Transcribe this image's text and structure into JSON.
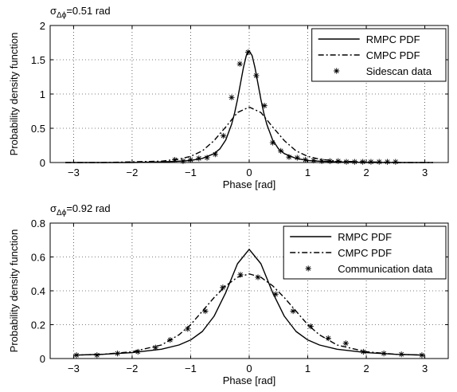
{
  "chart_data": [
    {
      "type": "line",
      "title_prefix": "σ",
      "title_subscript": "Δϕ",
      "title_suffix": "=0.51 rad",
      "xlabel": "Phase [rad]",
      "ylabel": "Probability density function",
      "xlim": [
        -3.4,
        3.4
      ],
      "ylim": [
        0,
        2
      ],
      "xticks": [
        -3,
        -2,
        -1,
        0,
        1,
        2,
        3
      ],
      "xticklabels": [
        "−3",
        "−2",
        "−1",
        "0",
        "1",
        "2",
        "3"
      ],
      "yticks": [
        0,
        0.5,
        1,
        1.5,
        2
      ],
      "yticklabels": [
        "0",
        "0.5",
        "1",
        "1.5",
        "2"
      ],
      "grid": true,
      "legend_position": "top-right",
      "series": [
        {
          "name": "RMPC PDF",
          "style": "solid",
          "x": [
            -3.14,
            -2.5,
            -2.0,
            -1.5,
            -1.2,
            -1.0,
            -0.8,
            -0.6,
            -0.5,
            -0.4,
            -0.3,
            -0.25,
            -0.2,
            -0.15,
            -0.1,
            -0.05,
            0.0,
            0.05,
            0.1,
            0.15,
            0.2,
            0.25,
            0.3,
            0.4,
            0.5,
            0.6,
            0.8,
            1.0,
            1.2,
            1.5,
            2.0,
            2.5,
            3.14
          ],
          "y": [
            0.0,
            0.0,
            0.0,
            0.01,
            0.02,
            0.03,
            0.06,
            0.13,
            0.2,
            0.33,
            0.56,
            0.72,
            0.92,
            1.15,
            1.38,
            1.56,
            1.63,
            1.56,
            1.38,
            1.15,
            0.92,
            0.72,
            0.56,
            0.33,
            0.2,
            0.13,
            0.06,
            0.03,
            0.02,
            0.01,
            0.0,
            0.0,
            0.0
          ]
        },
        {
          "name": "CMPC PDF",
          "style": "dashdot",
          "x": [
            -3.14,
            -2.5,
            -2.0,
            -1.5,
            -1.2,
            -1.0,
            -0.8,
            -0.6,
            -0.4,
            -0.2,
            0.0,
            0.2,
            0.4,
            0.6,
            0.8,
            1.0,
            1.2,
            1.5,
            2.0,
            2.5,
            3.14
          ],
          "y": [
            0.0,
            0.0,
            0.01,
            0.02,
            0.05,
            0.09,
            0.17,
            0.32,
            0.52,
            0.73,
            0.81,
            0.73,
            0.52,
            0.32,
            0.17,
            0.09,
            0.05,
            0.02,
            0.01,
            0.0,
            0.0
          ]
        },
        {
          "name": "Sidescan data",
          "style": "marker-star",
          "x": [
            -1.27,
            -1.13,
            -1.0,
            -0.86,
            -0.72,
            -0.58,
            -0.44,
            -0.3,
            -0.16,
            -0.02,
            0.12,
            0.26,
            0.4,
            0.54,
            0.68,
            0.82,
            0.96,
            1.1,
            1.24,
            1.38,
            1.52,
            1.66,
            1.8,
            1.94,
            2.08,
            2.22,
            2.36,
            2.5
          ],
          "y": [
            0.04,
            0.02,
            0.04,
            0.06,
            0.07,
            0.12,
            0.39,
            0.95,
            1.44,
            1.61,
            1.27,
            0.83,
            0.29,
            0.17,
            0.08,
            0.07,
            0.04,
            0.03,
            0.02,
            0.02,
            0.02,
            0.01,
            0.01,
            0.01,
            0.01,
            0.01,
            0.01,
            0.01
          ]
        }
      ]
    },
    {
      "type": "line",
      "title_prefix": "σ",
      "title_subscript": "Δϕ",
      "title_suffix": "=0.92 rad",
      "xlabel": "Phase [rad]",
      "ylabel": "Probability density function",
      "xlim": [
        -3.4,
        3.4
      ],
      "ylim": [
        0,
        0.8
      ],
      "xticks": [
        -3,
        -2,
        -1,
        0,
        1,
        2,
        3
      ],
      "xticklabels": [
        "−3",
        "−2",
        "−1",
        "0",
        "1",
        "2",
        "3"
      ],
      "yticks": [
        0,
        0.2,
        0.4,
        0.6,
        0.8
      ],
      "yticklabels": [
        "0",
        "0.2",
        "0.4",
        "0.6",
        "0.8"
      ],
      "grid": true,
      "legend_position": "top-right",
      "series": [
        {
          "name": "RMPC PDF",
          "style": "solid",
          "x": [
            -3.0,
            -2.5,
            -2.0,
            -1.5,
            -1.2,
            -1.0,
            -0.8,
            -0.6,
            -0.4,
            -0.2,
            0.0,
            0.2,
            0.4,
            0.6,
            0.8,
            1.0,
            1.2,
            1.5,
            2.0,
            2.5,
            3.0
          ],
          "y": [
            0.02,
            0.025,
            0.035,
            0.055,
            0.08,
            0.11,
            0.16,
            0.25,
            0.39,
            0.56,
            0.645,
            0.56,
            0.39,
            0.25,
            0.16,
            0.11,
            0.08,
            0.055,
            0.035,
            0.025,
            0.02
          ]
        },
        {
          "name": "CMPC PDF",
          "style": "dashdot",
          "x": [
            -3.0,
            -2.5,
            -2.0,
            -1.5,
            -1.2,
            -1.0,
            -0.8,
            -0.6,
            -0.4,
            -0.2,
            0.0,
            0.2,
            0.4,
            0.6,
            0.8,
            1.0,
            1.2,
            1.5,
            2.0,
            2.5,
            3.0
          ],
          "y": [
            0.02,
            0.025,
            0.04,
            0.08,
            0.14,
            0.2,
            0.28,
            0.36,
            0.43,
            0.48,
            0.5,
            0.48,
            0.43,
            0.36,
            0.28,
            0.2,
            0.14,
            0.08,
            0.04,
            0.025,
            0.02
          ]
        },
        {
          "name": "Communication data",
          "style": "marker-star",
          "x": [
            -2.95,
            -2.6,
            -2.25,
            -1.9,
            -1.6,
            -1.35,
            -1.05,
            -0.75,
            -0.45,
            -0.15,
            0.15,
            0.45,
            0.75,
            1.05,
            1.35,
            1.65,
            1.95,
            2.3,
            2.6,
            2.95
          ],
          "y": [
            0.02,
            0.02,
            0.03,
            0.04,
            0.065,
            0.11,
            0.175,
            0.28,
            0.42,
            0.495,
            0.48,
            0.38,
            0.28,
            0.19,
            0.12,
            0.09,
            0.04,
            0.03,
            0.025,
            0.02
          ]
        }
      ]
    }
  ]
}
